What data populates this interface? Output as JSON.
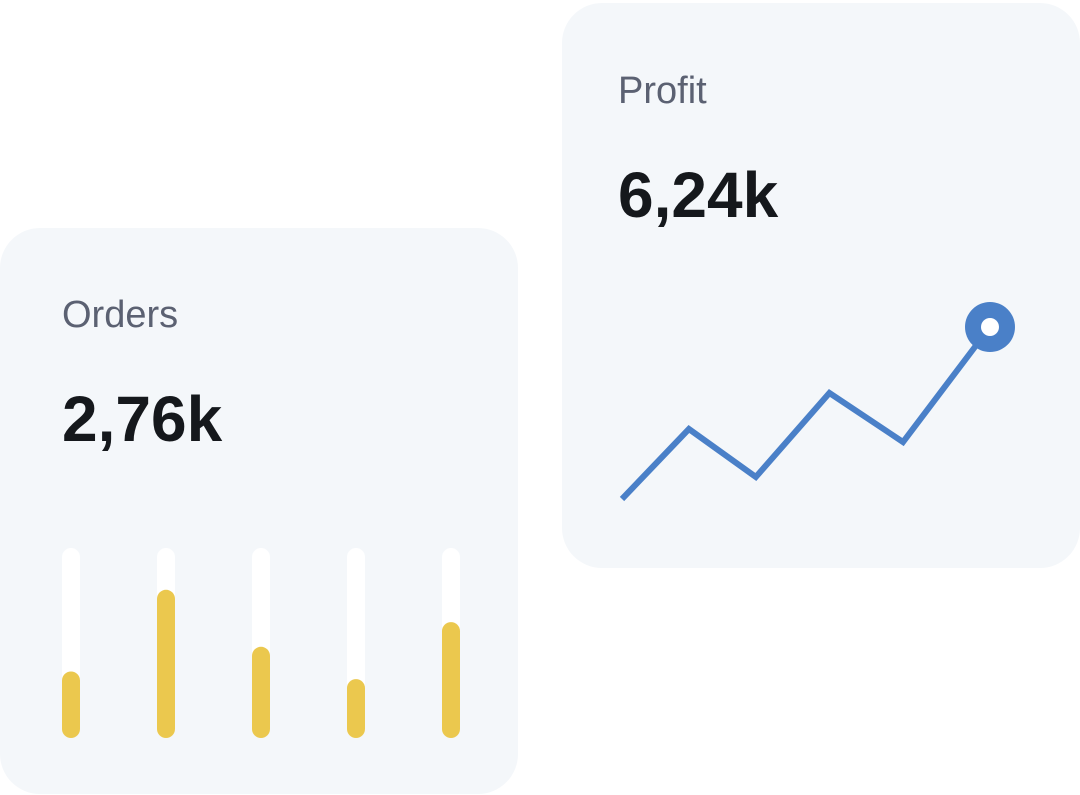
{
  "cards": [
    {
      "label": "Orders",
      "value": "2,76k",
      "chart_data": {
        "type": "bar",
        "values": [
          35,
          78,
          48,
          31,
          61
        ],
        "ylim": [
          0,
          100
        ],
        "color": "#ebc84e"
      }
    },
    {
      "label": "Profit",
      "value": "6,24k",
      "chart_data": {
        "type": "line",
        "x": [
          0,
          1,
          2,
          3.1,
          4.2,
          5.5
        ],
        "values": [
          5.5,
          40.5,
          16.5,
          58.5,
          34,
          91.5
        ],
        "xlim": [
          0,
          5.5
        ],
        "ylim": [
          0,
          100
        ],
        "color": "#4a80c8"
      }
    }
  ]
}
